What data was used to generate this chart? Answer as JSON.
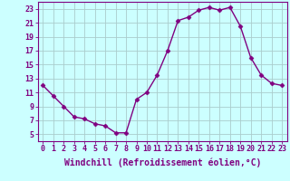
{
  "x": [
    0,
    1,
    2,
    3,
    4,
    5,
    6,
    7,
    8,
    9,
    10,
    11,
    12,
    13,
    14,
    15,
    16,
    17,
    18,
    19,
    20,
    21,
    22,
    23
  ],
  "y": [
    12,
    10.5,
    9,
    7.5,
    7.2,
    6.5,
    6.2,
    5.2,
    5.2,
    10.0,
    11.0,
    13.5,
    17.0,
    21.3,
    21.8,
    22.8,
    23.2,
    22.8,
    23.2,
    20.5,
    16.0,
    13.5,
    12.3,
    12.0
  ],
  "line_color": "#800080",
  "marker": "D",
  "marker_size": 2.5,
  "linewidth": 1.0,
  "xlabel": "Windchill (Refroidissement éolien,°C)",
  "xlabel_fontsize": 7.0,
  "bg_color": "#ccffff",
  "grid_color": "#aacccc",
  "xlim": [
    -0.5,
    23.5
  ],
  "ylim": [
    4,
    24
  ],
  "yticks": [
    5,
    7,
    9,
    11,
    13,
    15,
    17,
    19,
    21,
    23
  ],
  "xticks": [
    0,
    1,
    2,
    3,
    4,
    5,
    6,
    7,
    8,
    9,
    10,
    11,
    12,
    13,
    14,
    15,
    16,
    17,
    18,
    19,
    20,
    21,
    22,
    23
  ],
  "tick_fontsize": 6.0,
  "spine_color": "#800080"
}
